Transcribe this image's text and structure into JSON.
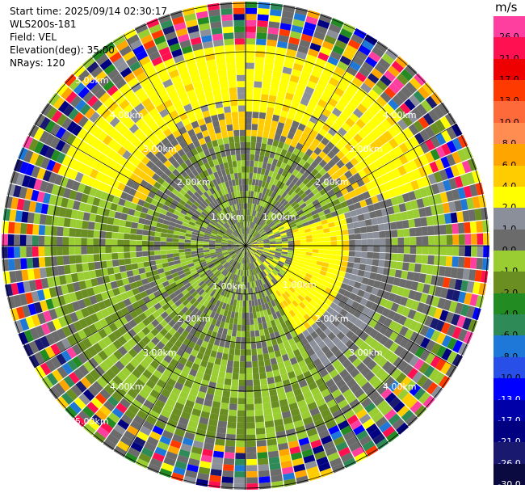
{
  "info": {
    "start_time": "Start time: 2025/09/14 02:30:17",
    "instrument": "WLS200s-181",
    "field": "Field: VEL",
    "elevation": "Elevation(deg): 35.00",
    "nrays": "NRays: 120"
  },
  "colorbar": {
    "unit": "m/s",
    "levels": [
      {
        "label": "26.0",
        "color": "#ff3fa0"
      },
      {
        "label": "21.0",
        "color": "#ff1050"
      },
      {
        "label": "17.0",
        "color": "#ee0000"
      },
      {
        "label": "13.0",
        "color": "#ff3a00"
      },
      {
        "label": "10.0",
        "color": "#ff6a3a"
      },
      {
        "label": "8.0",
        "color": "#ff8c50"
      },
      {
        "label": "6.0",
        "color": "#ffa500"
      },
      {
        "label": "4.0",
        "color": "#ffcc00"
      },
      {
        "label": "2.0",
        "color": "#ffff00"
      },
      {
        "label": "1.0",
        "color": "#8a8f9a"
      },
      {
        "label": "0.0",
        "color": "#6b6b6b"
      },
      {
        "label": "-1.0",
        "color": "#9acd32"
      },
      {
        "label": "-2.0",
        "color": "#6b8e23"
      },
      {
        "label": "-4.0",
        "color": "#228b22"
      },
      {
        "label": "-6.0",
        "color": "#2e8b57"
      },
      {
        "label": "-8.0",
        "color": "#1e78d8"
      },
      {
        "label": "-10.0",
        "color": "#2850e8"
      },
      {
        "label": "-13.0",
        "color": "#0000ff"
      },
      {
        "label": "-17.0",
        "color": "#0000a8"
      },
      {
        "label": "-21.0",
        "color": "#000080"
      },
      {
        "label": "-26.0",
        "color": "#191970"
      },
      {
        "label": "-30.0",
        "color": "#0a0a40"
      }
    ]
  },
  "ring_labels": {
    "r1": "1.00km",
    "r2": "2.00km",
    "r3": "3.00km",
    "r4": "4.00km",
    "r5": "5.00km"
  },
  "plot": {
    "rays": 120,
    "gates": 40
  }
}
